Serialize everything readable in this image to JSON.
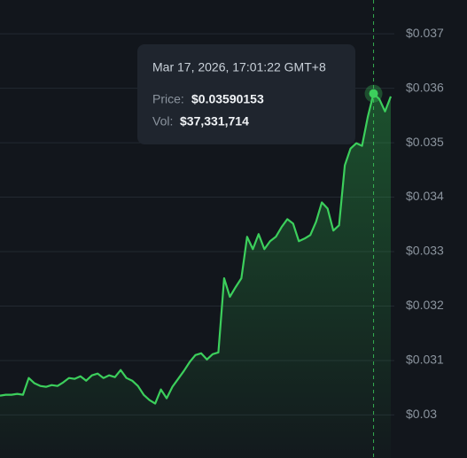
{
  "chart_data": {
    "type": "line",
    "series": [
      {
        "color": "#3ccf5c",
        "values": [
          0.030355,
          0.030371,
          0.030371,
          0.030387,
          0.030371,
          0.030679,
          0.030582,
          0.030533,
          0.030517,
          0.030549,
          0.030533,
          0.030598,
          0.030679,
          0.030663,
          0.030711,
          0.03063,
          0.030728,
          0.03076,
          0.030679,
          0.030728,
          0.030695,
          0.030825,
          0.030679,
          0.03063,
          0.030533,
          0.030371,
          0.030274,
          0.030209,
          0.030468,
          0.030306,
          0.030517,
          0.030663,
          0.030809,
          0.030971,
          0.0311,
          0.031133,
          0.031019,
          0.031117,
          0.031149,
          0.03251,
          0.03217,
          0.032348,
          0.03251,
          0.033272,
          0.033045,
          0.033321,
          0.033045,
          0.033191,
          0.033272,
          0.033451,
          0.033596,
          0.033515,
          0.033191,
          0.03324,
          0.033305,
          0.033548,
          0.033904,
          0.033791,
          0.033386,
          0.033483,
          0.034585,
          0.034893,
          0.03499,
          0.034942,
          0.035476,
          0.03590153,
          0.035801,
          0.035574,
          0.035849
        ]
      }
    ],
    "ylim": [
      0.02921,
      0.03762
    ],
    "yticks": [
      {
        "value": 0.03,
        "label": "$0.03"
      },
      {
        "value": 0.031,
        "label": "$0.031"
      },
      {
        "value": 0.032,
        "label": "$0.032"
      },
      {
        "value": 0.033,
        "label": "$0.033"
      },
      {
        "value": 0.034,
        "label": "$0.034"
      },
      {
        "value": 0.035,
        "label": "$0.035"
      },
      {
        "value": 0.036,
        "label": "$0.036"
      },
      {
        "value": 0.037,
        "label": "$0.037"
      }
    ],
    "grid": true,
    "tooltip": {
      "date": "Mar 17, 2026, 17:01:22 GMT+8",
      "price_label": "Price:",
      "price": "$0.03590153",
      "vol_label": "Vol:",
      "vol": "$37,331,714"
    }
  }
}
